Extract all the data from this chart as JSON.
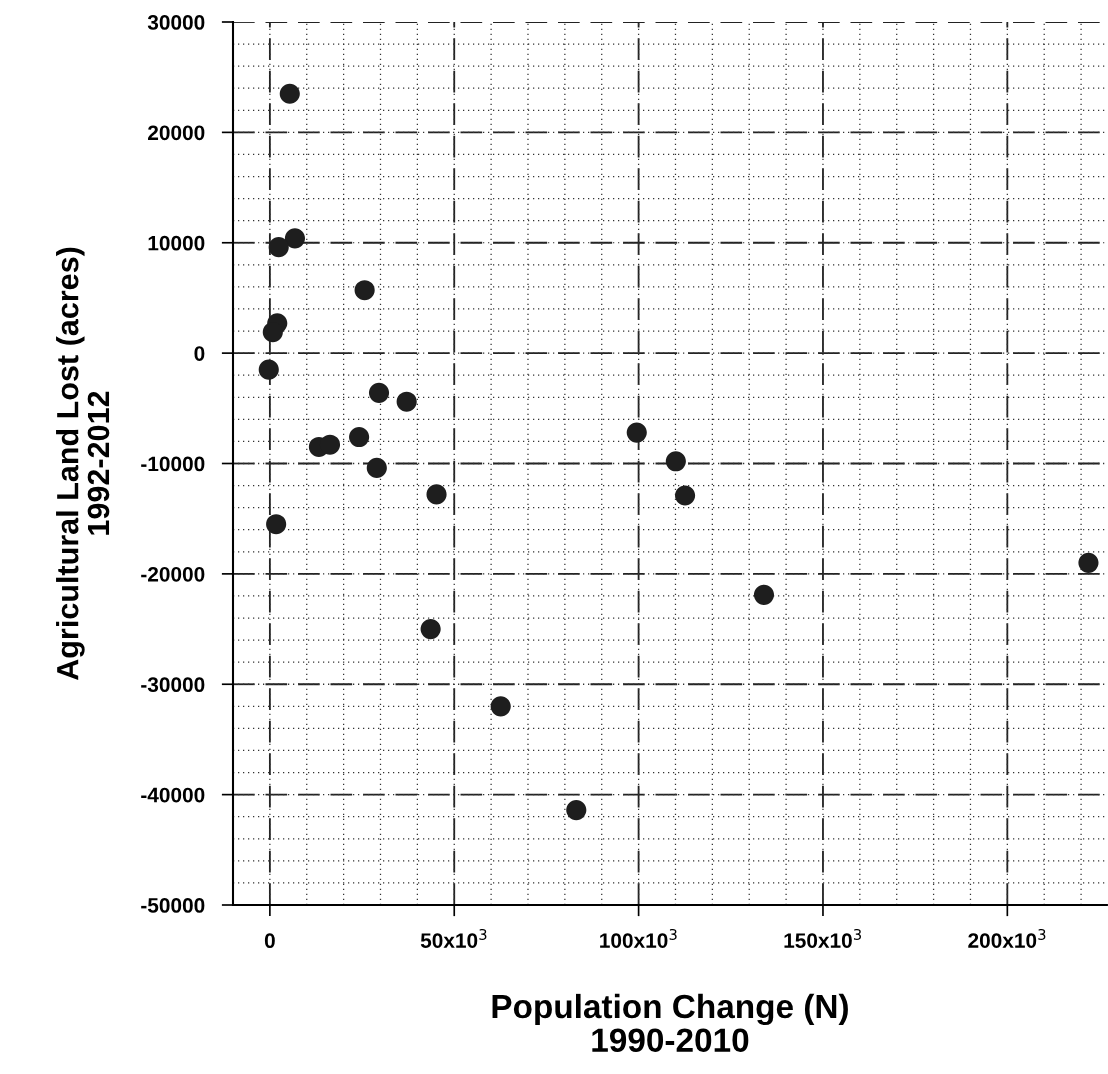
{
  "chart_data": {
    "type": "scatter",
    "xlabel": "Population Change (N)\n1990-2010",
    "ylabel": "Agricultural Land Lost (acres)\n1992-2012",
    "x": [
      5400,
      6800,
      2400,
      25700,
      2000,
      800,
      -300,
      29600,
      37100,
      24200,
      13300,
      16300,
      29000,
      45200,
      1700,
      99500,
      110100,
      112600,
      134000,
      43600,
      62600,
      83100,
      222000
    ],
    "values": [
      23500,
      10400,
      9600,
      5700,
      2700,
      1900,
      -1500,
      -3600,
      -4400,
      -7600,
      -8500,
      -8300,
      -10400,
      -12800,
      -15500,
      -7200,
      -9800,
      -12900,
      -21900,
      -25000,
      -32000,
      -41400,
      -19000
    ],
    "color": "#1e1e1e",
    "marker": "circle",
    "grid": true,
    "xlim": [
      -10000,
      227000
    ],
    "xticks": [
      0,
      {
        "value": 50000,
        "label": "50x10$^{3}$"
      },
      {
        "value": 100000,
        "label": "100x10$^{3}$"
      },
      {
        "value": 150000,
        "label": "150x10$^{3}$"
      },
      {
        "value": 200000,
        "label": "200x10$^{3}$"
      }
    ],
    "ylim": [
      -50000,
      30000
    ],
    "yticks": [
      -50000,
      -40000,
      -30000,
      -20000,
      -10000,
      0,
      10000,
      20000,
      30000
    ]
  }
}
